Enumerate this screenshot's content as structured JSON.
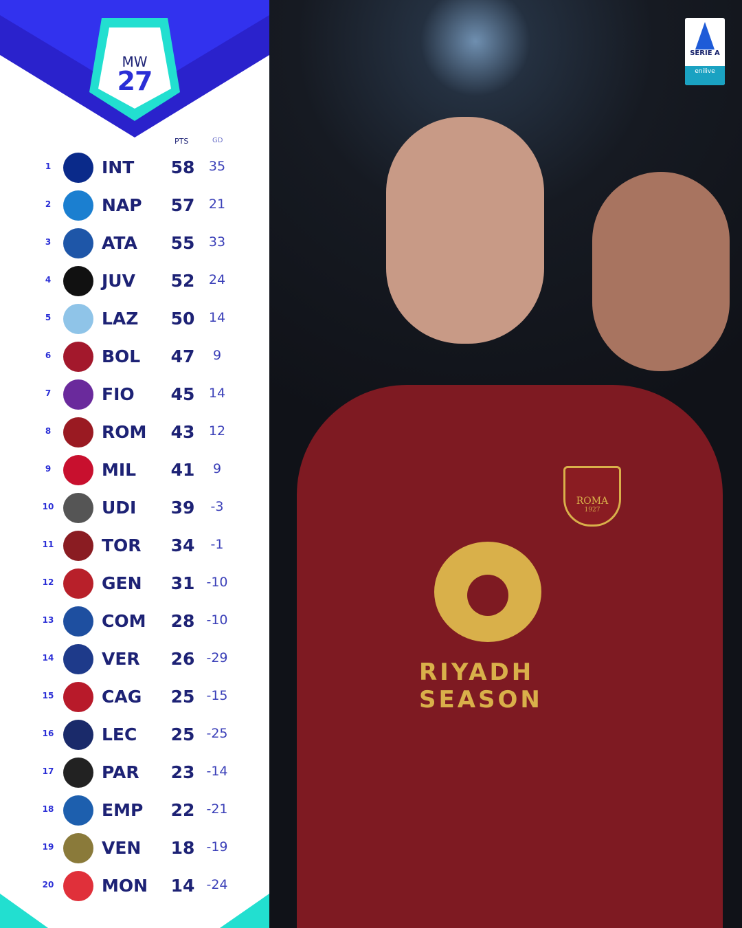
{
  "badge": {
    "label": "MW",
    "number": "27"
  },
  "headers": {
    "pts": "PTS",
    "gd": "GD"
  },
  "colors": {
    "blue": "#3232ee",
    "dark_blue": "#2a22cc",
    "cyan": "#22dfd0",
    "navy": "#1d2275"
  },
  "teams": [
    {
      "rank": "1",
      "abbr": "INT",
      "pts": "58",
      "gd": "35",
      "logo_color": "#0a2a8a"
    },
    {
      "rank": "2",
      "abbr": "NAP",
      "pts": "57",
      "gd": "21",
      "logo_color": "#1b7fd0"
    },
    {
      "rank": "3",
      "abbr": "ATA",
      "pts": "55",
      "gd": "33",
      "logo_color": "#1e56a8"
    },
    {
      "rank": "4",
      "abbr": "JUV",
      "pts": "52",
      "gd": "24",
      "logo_color": "#111111"
    },
    {
      "rank": "5",
      "abbr": "LAZ",
      "pts": "50",
      "gd": "14",
      "logo_color": "#8fc4e8"
    },
    {
      "rank": "6",
      "abbr": "BOL",
      "pts": "47",
      "gd": "9",
      "logo_color": "#a3182c"
    },
    {
      "rank": "7",
      "abbr": "FIO",
      "pts": "45",
      "gd": "14",
      "logo_color": "#6a2a9c"
    },
    {
      "rank": "8",
      "abbr": "ROM",
      "pts": "43",
      "gd": "12",
      "logo_color": "#9a1a22"
    },
    {
      "rank": "9",
      "abbr": "MIL",
      "pts": "41",
      "gd": "9",
      "logo_color": "#c8102e"
    },
    {
      "rank": "10",
      "abbr": "UDI",
      "pts": "39",
      "gd": "-3",
      "logo_color": "#555555"
    },
    {
      "rank": "11",
      "abbr": "TOR",
      "pts": "34",
      "gd": "-1",
      "logo_color": "#8a1c22"
    },
    {
      "rank": "12",
      "abbr": "GEN",
      "pts": "31",
      "gd": "-10",
      "logo_color": "#b8202a"
    },
    {
      "rank": "13",
      "abbr": "COM",
      "pts": "28",
      "gd": "-10",
      "logo_color": "#1e4fa0"
    },
    {
      "rank": "14",
      "abbr": "VER",
      "pts": "26",
      "gd": "-29",
      "logo_color": "#1e3a8a"
    },
    {
      "rank": "15",
      "abbr": "CAG",
      "pts": "25",
      "gd": "-15",
      "logo_color": "#b81a2a"
    },
    {
      "rank": "16",
      "abbr": "LEC",
      "pts": "25",
      "gd": "-25",
      "logo_color": "#1a2a6a"
    },
    {
      "rank": "17",
      "abbr": "PAR",
      "pts": "23",
      "gd": "-14",
      "logo_color": "#222222"
    },
    {
      "rank": "18",
      "abbr": "EMP",
      "pts": "22",
      "gd": "-21",
      "logo_color": "#1d5fae"
    },
    {
      "rank": "19",
      "abbr": "VEN",
      "pts": "18",
      "gd": "-19",
      "logo_color": "#8a7a3a"
    },
    {
      "rank": "20",
      "abbr": "MON",
      "pts": "14",
      "gd": "-24",
      "logo_color": "#e0303a"
    }
  ],
  "photo": {
    "sponsor": "RIYADH SEASON",
    "crest": "ROMA",
    "crest_year": "1927"
  },
  "league_logo": {
    "name": "SERIE A",
    "sponsor": "enilive"
  }
}
